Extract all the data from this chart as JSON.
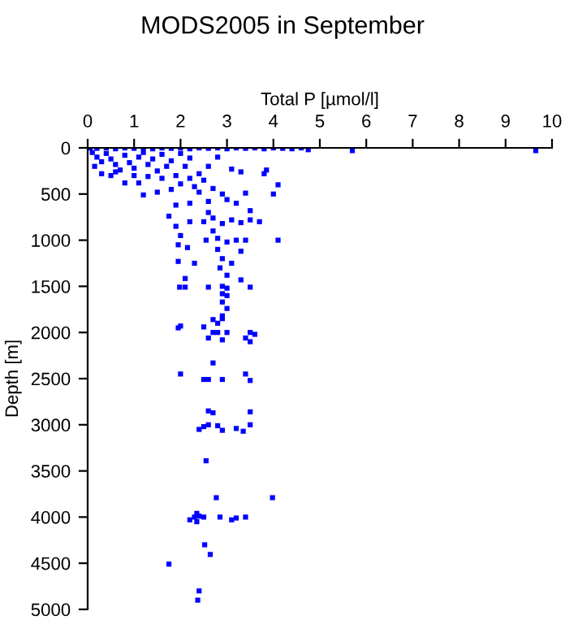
{
  "chart_data": {
    "type": "scatter",
    "title": "MODS2005 in September",
    "xlabel": "Total P [µmol/l]",
    "ylabel": "Depth [m]",
    "xlim": [
      0,
      10
    ],
    "xticks": [
      0,
      1,
      2,
      3,
      4,
      5,
      6,
      7,
      8,
      9,
      10
    ],
    "ylim": [
      5000,
      0
    ],
    "yticks": [
      0,
      500,
      1000,
      1500,
      2000,
      2500,
      3000,
      3500,
      4000,
      4500,
      5000
    ],
    "grid": false,
    "marker": "square",
    "legend": false,
    "series": [
      {
        "color": "#0000ff",
        "x": [
          0.05,
          0.2,
          0.4,
          0.6,
          0.8,
          1.0,
          1.2,
          1.4,
          1.6,
          1.8,
          2.0,
          2.2,
          2.4,
          2.6,
          2.8,
          3.0,
          3.2,
          3.4,
          3.6,
          3.8,
          4.0,
          4.2,
          4.4,
          4.6,
          4.75,
          5.7,
          9.65,
          0.1,
          0.2,
          0.3,
          0.15,
          0.4,
          0.5,
          0.6,
          0.7,
          0.3,
          0.5,
          0.8,
          0.9,
          1.0,
          1.1,
          1.2,
          1.3,
          1.0,
          1.4,
          1.5,
          1.6,
          1.7,
          1.8,
          1.9,
          2.0,
          2.1,
          2.2,
          2.4,
          0.8,
          1.1,
          1.3,
          0.6,
          1.6,
          2.8,
          2.6,
          3.1,
          3.3,
          3.8,
          3.85,
          4.1,
          4.0,
          2.2,
          2.5,
          2.0,
          2.3,
          1.8,
          1.5,
          1.2,
          2.7,
          2.9,
          2.4,
          3.4,
          3.0,
          2.6,
          2.2,
          1.9,
          3.2,
          3.5,
          1.75,
          1.9,
          2.2,
          2.6,
          2.7,
          2.5,
          2.9,
          3.1,
          3.3,
          3.7,
          3.5,
          2.7,
          2.55,
          2.8,
          3.0,
          3.2,
          3.4,
          4.1,
          2.0,
          1.95,
          2.15,
          2.8,
          2.9,
          3.1,
          2.85,
          1.95,
          3.3,
          2.3,
          3.0,
          2.1,
          3.3,
          1.98,
          2.1,
          2.6,
          2.9,
          3.0,
          3.5,
          2.9,
          3.0,
          2.9,
          3.0,
          2.9,
          2.7,
          2.9,
          2.8,
          2.0,
          1.95,
          2.5,
          2.7,
          2.8,
          3.0,
          3.5,
          3.6,
          2.6,
          2.9,
          3.4,
          3.5,
          2.7,
          2.0,
          2.5,
          2.6,
          2.9,
          3.4,
          3.5,
          2.6,
          2.7,
          3.5,
          2.4,
          2.5,
          2.6,
          2.8,
          2.9,
          3.2,
          3.5,
          3.35,
          2.55,
          2.77,
          3.98,
          2.2,
          2.3,
          2.35,
          2.4,
          2.5,
          2.35,
          2.85,
          3.1,
          3.2,
          3.4,
          2.52,
          2.64,
          1.75,
          2.4,
          2.37
        ],
        "values": [
          0,
          5,
          0,
          10,
          0,
          5,
          0,
          10,
          0,
          5,
          0,
          10,
          0,
          5,
          0,
          10,
          0,
          5,
          0,
          10,
          0,
          5,
          10,
          0,
          20,
          30,
          30,
          50,
          100,
          150,
          200,
          60,
          120,
          180,
          240,
          280,
          300,
          80,
          160,
          220,
          100,
          50,
          180,
          300,
          120,
          250,
          70,
          200,
          140,
          300,
          60,
          200,
          110,
          280,
          380,
          380,
          310,
          260,
          330,
          100,
          200,
          230,
          260,
          280,
          240,
          400,
          500,
          330,
          350,
          390,
          420,
          450,
          480,
          510,
          440,
          500,
          480,
          490,
          560,
          580,
          600,
          620,
          600,
          680,
          740,
          850,
          800,
          700,
          760,
          800,
          820,
          780,
          810,
          800,
          780,
          900,
          1000,
          980,
          1020,
          1000,
          1000,
          1000,
          950,
          1050,
          1080,
          1100,
          1200,
          1250,
          1300,
          1230,
          1120,
          1250,
          1380,
          1415,
          1430,
          1509,
          1509,
          1509,
          1500,
          1520,
          1509,
          1580,
          1600,
          1670,
          1740,
          1820,
          1860,
          1850,
          1900,
          1930,
          1950,
          1940,
          2000,
          2000,
          2000,
          2000,
          2020,
          2060,
          2080,
          2060,
          2100,
          2330,
          2450,
          2509,
          2509,
          2509,
          2450,
          2520,
          2850,
          2870,
          2860,
          3050,
          3020,
          3000,
          3010,
          3060,
          3040,
          3000,
          3070,
          3390,
          3790,
          3790,
          4030,
          4000,
          3960,
          3990,
          4000,
          4050,
          4000,
          4030,
          4010,
          4000,
          4300,
          4405,
          4510,
          4800,
          4900
        ]
      }
    ]
  }
}
